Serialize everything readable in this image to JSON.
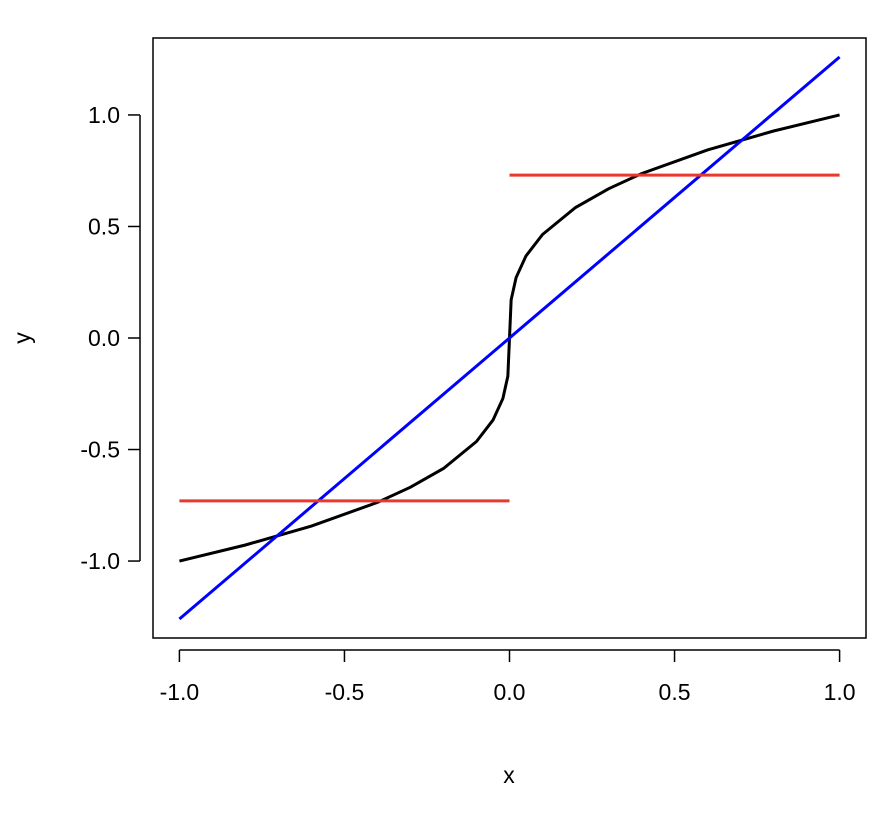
{
  "chart_data": {
    "type": "line",
    "x_label": "x",
    "y_label": "y",
    "xlim": [
      -1.08,
      1.08
    ],
    "ylim": [
      -1.345,
      1.345
    ],
    "xticks": [
      {
        "value": -1,
        "label": "-1.0"
      },
      {
        "value": -0.5,
        "label": "-0.5"
      },
      {
        "value": 0,
        "label": "0.0"
      },
      {
        "value": 0.5,
        "label": "0.5"
      },
      {
        "value": 1,
        "label": "1.0"
      }
    ],
    "yticks": [
      {
        "value": -1,
        "label": "-1.0"
      },
      {
        "value": -0.5,
        "label": "-0.5"
      },
      {
        "value": 0,
        "label": "0.0"
      },
      {
        "value": 0.5,
        "label": "0.5"
      },
      {
        "value": 1,
        "label": "1.0"
      }
    ],
    "series": [
      {
        "color": "#000000",
        "x": [
          -1,
          -0.8,
          -0.6,
          -0.4,
          -0.3,
          -0.2,
          -0.1,
          -0.05,
          -0.02,
          -0.005,
          0,
          0.005,
          0.02,
          0.05,
          0.1,
          0.2,
          0.3,
          0.4,
          0.6,
          0.8,
          1
        ],
        "values": [
          -1,
          -0.928,
          -0.843,
          -0.737,
          -0.669,
          -0.585,
          -0.464,
          -0.368,
          -0.271,
          -0.171,
          0,
          0.171,
          0.271,
          0.368,
          0.464,
          0.585,
          0.669,
          0.737,
          0.843,
          0.928,
          1
        ]
      },
      {
        "color": "#0000ff",
        "x": [
          -1,
          1
        ],
        "values": [
          -1.26,
          1.26
        ]
      },
      {
        "color": "#e8392c",
        "x": [
          -1,
          0,
          0,
          0,
          1
        ],
        "values": [
          -0.73,
          -0.73,
          null,
          0.73,
          0.73
        ]
      }
    ]
  }
}
